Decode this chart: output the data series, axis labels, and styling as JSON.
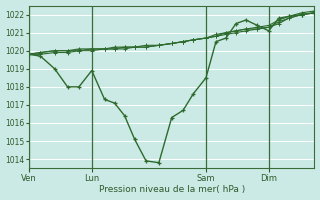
{
  "title": "Pression niveau de la mer( hPa )",
  "bg_color": "#cceae5",
  "grid_color": "#ffffff",
  "line_color": "#2d6a2d",
  "ylim": [
    1013.5,
    1022.5
  ],
  "yticks": [
    1014,
    1015,
    1016,
    1017,
    1018,
    1019,
    1020,
    1021,
    1022
  ],
  "xtick_labels": [
    "Ven",
    "Lun",
    "Sam",
    "Dim"
  ],
  "xtick_positions": [
    0.0,
    0.22,
    0.62,
    0.84
  ],
  "vline_positions": [
    0.0,
    0.22,
    0.62,
    0.84
  ],
  "series1_x": [
    0.0,
    0.04,
    0.09,
    0.135,
    0.175,
    0.22,
    0.265,
    0.3,
    0.335,
    0.37,
    0.41,
    0.455,
    0.5,
    0.54,
    0.575,
    0.62,
    0.655,
    0.69,
    0.725,
    0.76,
    0.8,
    0.84,
    0.875,
    0.91,
    0.955,
    1.0
  ],
  "series1_y": [
    1019.8,
    1019.7,
    1019.0,
    1018.0,
    1018.0,
    1018.9,
    1017.3,
    1017.1,
    1016.4,
    1015.1,
    1013.9,
    1013.8,
    1016.3,
    1016.7,
    1017.6,
    1018.5,
    1020.5,
    1020.7,
    1021.5,
    1021.7,
    1021.4,
    1021.1,
    1021.8,
    1021.9,
    1022.0,
    1022.1
  ],
  "series2_x": [
    0.0,
    0.04,
    0.09,
    0.135,
    0.175,
    0.22,
    0.265,
    0.3,
    0.335,
    0.37,
    0.41,
    0.455,
    0.5,
    0.54,
    0.575,
    0.62,
    0.655,
    0.69,
    0.725,
    0.76,
    0.8,
    0.84,
    0.875,
    0.91,
    0.955,
    1.0
  ],
  "series2_y": [
    1019.8,
    1019.8,
    1019.9,
    1019.9,
    1020.0,
    1020.0,
    1020.1,
    1020.1,
    1020.1,
    1020.2,
    1020.2,
    1020.3,
    1020.4,
    1020.5,
    1020.6,
    1020.7,
    1020.8,
    1020.9,
    1021.0,
    1021.1,
    1021.2,
    1021.3,
    1021.6,
    1021.8,
    1022.0,
    1022.1
  ],
  "series3_x": [
    0.0,
    0.04,
    0.09,
    0.135,
    0.175,
    0.22,
    0.265,
    0.3,
    0.335,
    0.37,
    0.41,
    0.455,
    0.5,
    0.54,
    0.575,
    0.62,
    0.655,
    0.69,
    0.725,
    0.76,
    0.8,
    0.84,
    0.875,
    0.91,
    0.955,
    1.0
  ],
  "series3_y": [
    1019.8,
    1019.9,
    1020.0,
    1020.0,
    1020.1,
    1020.1,
    1020.1,
    1020.1,
    1020.2,
    1020.2,
    1020.2,
    1020.3,
    1020.4,
    1020.5,
    1020.6,
    1020.7,
    1020.9,
    1021.0,
    1021.1,
    1021.2,
    1021.3,
    1021.4,
    1021.7,
    1021.9,
    1022.1,
    1022.2
  ],
  "series4_x": [
    0.0,
    0.04,
    0.09,
    0.135,
    0.175,
    0.22,
    0.265,
    0.3,
    0.335,
    0.37,
    0.41,
    0.455,
    0.5,
    0.54,
    0.575,
    0.62,
    0.655,
    0.69,
    0.725,
    0.76,
    0.8,
    0.84,
    0.875,
    0.91,
    0.955,
    1.0
  ],
  "series4_y": [
    1019.8,
    1019.9,
    1020.0,
    1020.0,
    1020.0,
    1020.1,
    1020.1,
    1020.2,
    1020.2,
    1020.2,
    1020.3,
    1020.3,
    1020.4,
    1020.5,
    1020.6,
    1020.7,
    1020.8,
    1021.0,
    1021.1,
    1021.2,
    1021.2,
    1021.3,
    1021.5,
    1021.8,
    1022.0,
    1022.1
  ]
}
